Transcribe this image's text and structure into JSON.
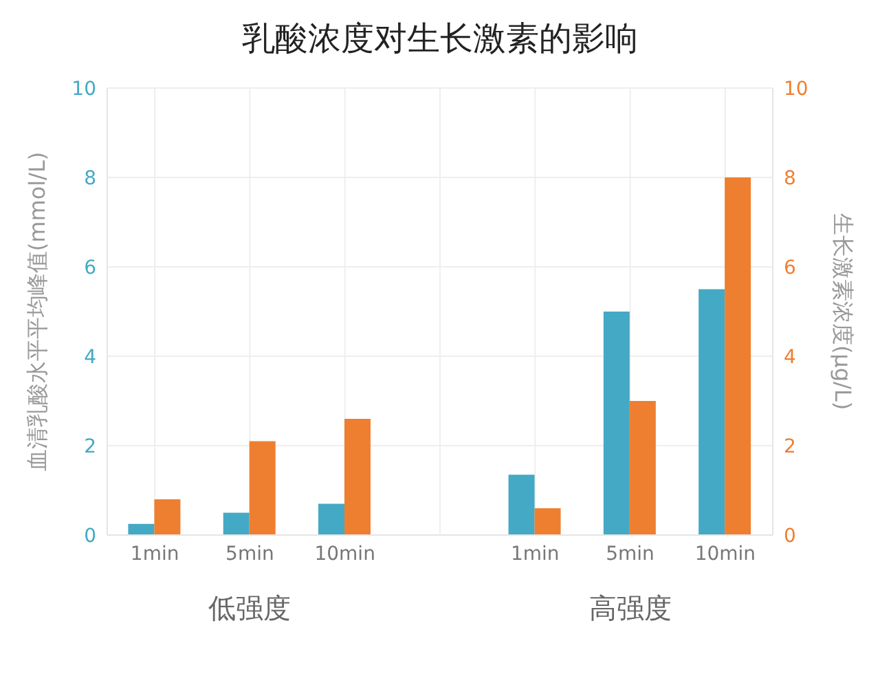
{
  "chart_data": {
    "type": "bar",
    "title": "乳酸浓度对生长激素的影响",
    "categories": [
      "1min",
      "5min",
      "10min",
      null,
      "1min",
      "5min",
      "10min"
    ],
    "series": [
      {
        "color": "#44a9c4",
        "values": [
          0.25,
          0.5,
          0.7,
          null,
          1.35,
          5.0,
          5.5
        ]
      },
      {
        "color": "#ee7f30",
        "axis": "y2",
        "values": [
          0.8,
          2.1,
          2.6,
          null,
          0.6,
          3.0,
          8.0
        ]
      }
    ],
    "ylabel": "血清乳酸水平平均峰值(mmol/L)",
    "y2label": "生长激素浓度(μg/L)",
    "ylim": [
      0,
      10
    ],
    "yticks": [
      0,
      2,
      4,
      6,
      8,
      10
    ],
    "y2lim": [
      0,
      10
    ],
    "y2ticks": [
      0,
      2,
      4,
      6,
      8,
      10
    ],
    "annotations": [
      "低强度",
      "高强度"
    ],
    "grid": true,
    "legend": false
  }
}
